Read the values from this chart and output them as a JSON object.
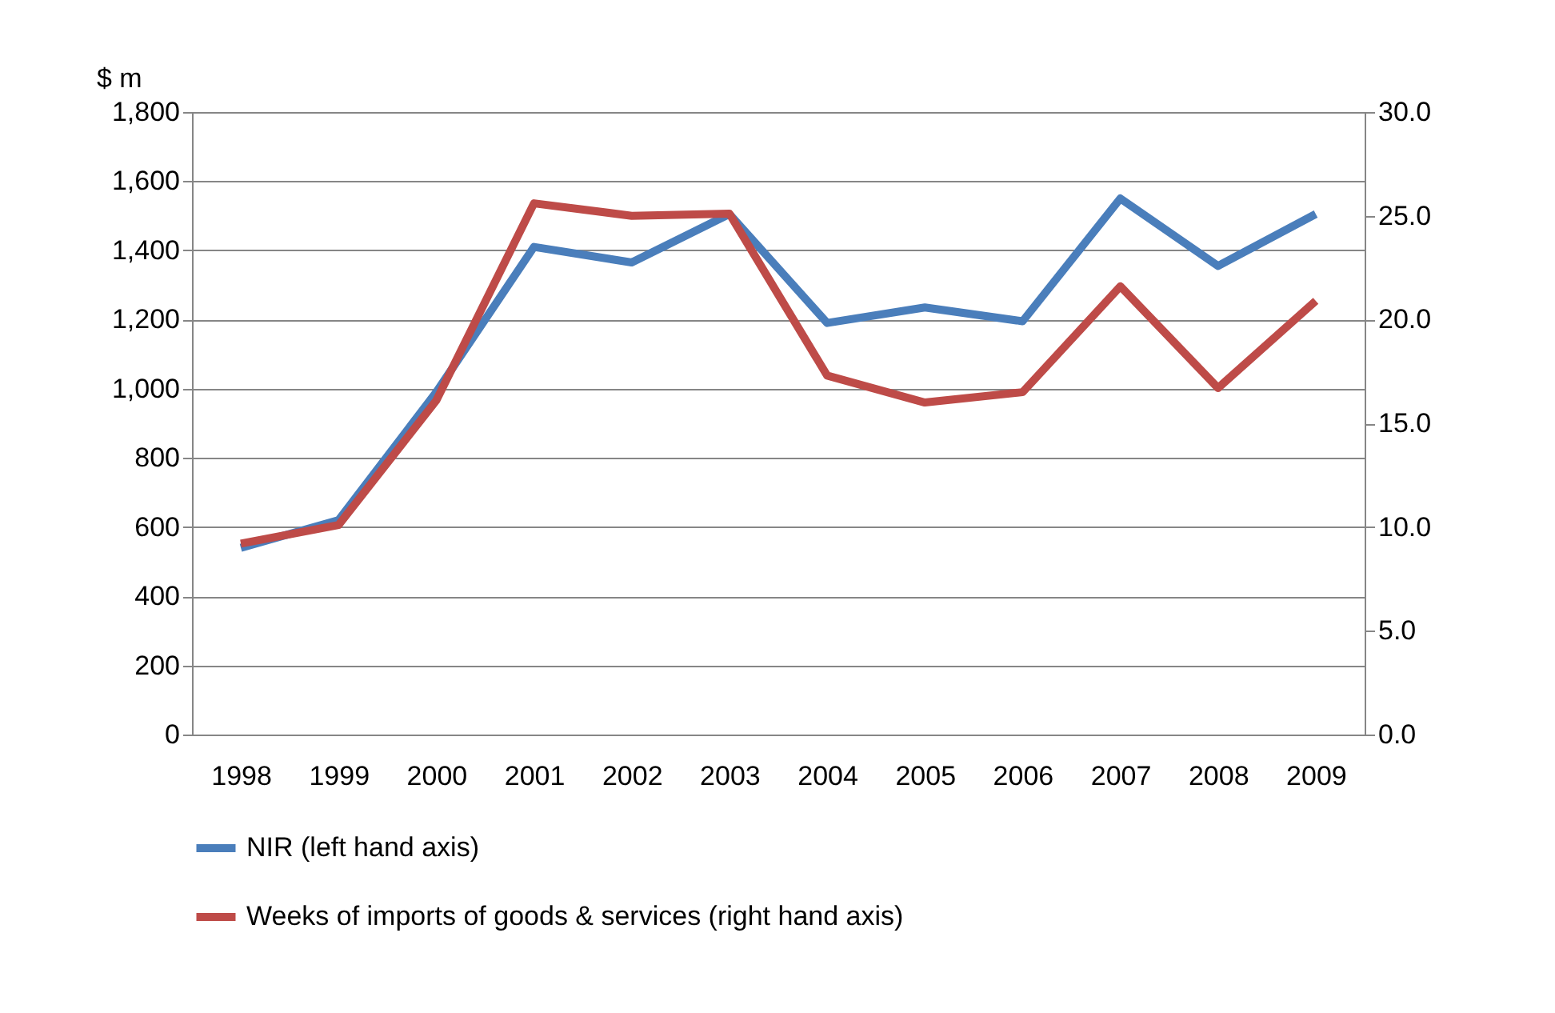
{
  "chart_data": {
    "type": "line",
    "ylabel": "$ m",
    "categories": [
      "1998",
      "1999",
      "2000",
      "2001",
      "2002",
      "2003",
      "2004",
      "2005",
      "2006",
      "2007",
      "2008",
      "2009"
    ],
    "series": [
      {
        "name": "NIR (left hand axis)",
        "color": "#4a7ebb",
        "values": [
          540,
          620,
          990,
          1410,
          1365,
          1505,
          1190,
          1235,
          1195,
          1550,
          1355,
          1505
        ]
      },
      {
        "name": "Weeks of imports of goods & services (right hand axis)",
        "color": "#be4b48",
        "axis": "y2",
        "values": [
          9.2,
          10.1,
          16.1,
          25.6,
          25.0,
          25.1,
          17.3,
          16.0,
          16.5,
          21.6,
          16.7,
          20.9
        ]
      }
    ],
    "ylim": [
      0,
      1800
    ],
    "yticks": [
      0,
      200,
      400,
      600,
      800,
      {
        "value": 1000,
        "label": "1,000"
      },
      {
        "value": 1200,
        "label": "1,200"
      },
      {
        "value": 1400,
        "label": "1,400"
      },
      {
        "value": 1600,
        "label": "1,600"
      },
      {
        "value": 1800,
        "label": "1,800"
      }
    ],
    "y2lim": [
      0,
      30
    ],
    "y2ticks": [
      {
        "value": 0,
        "label": "0.0"
      },
      {
        "value": 5,
        "label": "5.0"
      },
      {
        "value": 10,
        "label": "10.0"
      },
      {
        "value": 15,
        "label": "15.0"
      },
      {
        "value": 20,
        "label": "20.0"
      },
      {
        "value": 25,
        "label": "25.0"
      },
      {
        "value": 30,
        "label": "30.0"
      }
    ],
    "grid": "y",
    "legend": "bottom",
    "line_style": "solid"
  }
}
